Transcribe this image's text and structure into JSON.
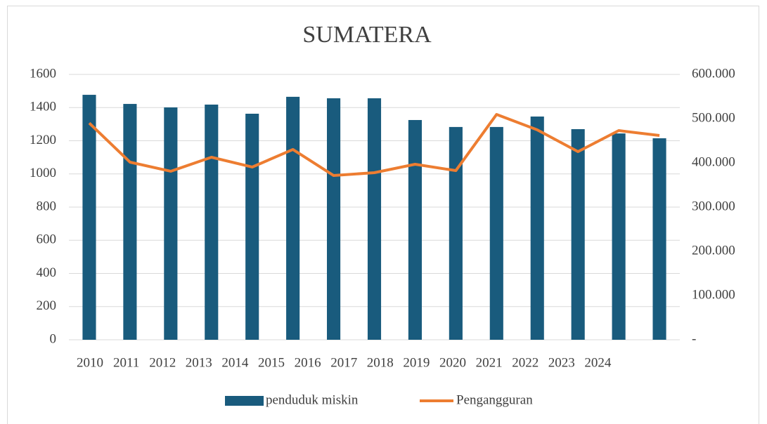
{
  "chart_data": {
    "type": "bar-line",
    "title": "SUMATERA",
    "categories": [
      "2010",
      "2011",
      "2012",
      "2013",
      "2014",
      "2015",
      "2016",
      "2017",
      "2018",
      "2019",
      "2020",
      "2021",
      "2022",
      "2023",
      "2024"
    ],
    "series": [
      {
        "name": "penduduk miskin",
        "type": "bar",
        "color": "#195b7d",
        "values": [
          1477,
          1422,
          1401,
          1418,
          1363,
          1465,
          1456,
          1456,
          1325,
          1283,
          1283,
          1346,
          1270,
          1244,
          1215
        ]
      },
      {
        "name": "Pengangguran",
        "type": "line",
        "axis": "y2",
        "color": "#ed7d31",
        "values": [
          490000,
          401600,
          381000,
          412700,
          390500,
          430200,
          371400,
          377800,
          396800,
          382500,
          509500,
          474600,
          425400,
          473000,
          461900
        ]
      }
    ],
    "ylim": [
      0,
      1600
    ],
    "yticks": [
      0,
      200,
      400,
      600,
      800,
      1000,
      1200,
      1400,
      1600
    ],
    "y2lim": [
      0,
      600000
    ],
    "y2ticks": [
      {
        "value": 0,
        "label": "-"
      },
      {
        "value": 100000,
        "label": "100.000"
      },
      {
        "value": 200000,
        "label": "200.000"
      },
      {
        "value": 300000,
        "label": "300.000"
      },
      {
        "value": 400000,
        "label": "400.000"
      },
      {
        "value": 500000,
        "label": "500.000"
      },
      {
        "value": 600000,
        "label": "600.000"
      }
    ],
    "grid": true,
    "legend": "bottom"
  }
}
